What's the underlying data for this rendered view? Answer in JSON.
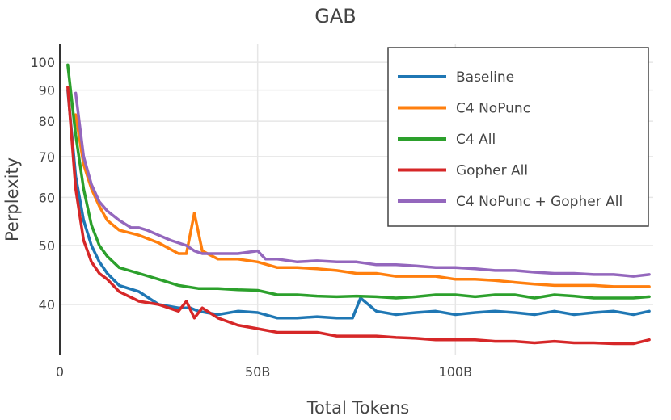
{
  "chart_data": {
    "type": "line",
    "title": "GAB",
    "xlabel": "Total Tokens",
    "ylabel": "Perplexity",
    "y_scale": "log",
    "xlim": [
      0,
      150
    ],
    "ylim": [
      33,
      107
    ],
    "x_unit_note": "x values in billions of tokens",
    "x_ticks": [
      0,
      50,
      100
    ],
    "x_tick_labels": [
      "0",
      "50B",
      "100B"
    ],
    "y_ticks": [
      40,
      50,
      60,
      70,
      80,
      90,
      100
    ],
    "y_tick_labels": [
      "40",
      "50",
      "60",
      "70",
      "80",
      "90",
      "100"
    ],
    "grid": true,
    "legend_position": "top-right",
    "series": [
      {
        "name": "Baseline",
        "color": "#1f77b4",
        "x": [
          2,
          4,
          6,
          8,
          10,
          12,
          15,
          20,
          25,
          30,
          33,
          35,
          40,
          45,
          50,
          55,
          60,
          65,
          70,
          74,
          76,
          80,
          85,
          90,
          95,
          100,
          105,
          110,
          115,
          120,
          125,
          130,
          135,
          140,
          145,
          149
        ],
        "y": [
          90,
          65,
          55,
          50,
          47,
          45,
          43,
          42,
          40,
          39.5,
          39.5,
          39,
          38.5,
          39,
          38.8,
          38,
          38,
          38.2,
          38,
          38,
          41,
          39,
          38.5,
          38.8,
          39,
          38.5,
          38.8,
          39,
          38.8,
          38.5,
          39,
          38.5,
          38.8,
          39,
          38.5,
          39
        ]
      },
      {
        "name": "C4 NoPunc",
        "color": "#ff7f0e",
        "x": [
          4,
          6,
          8,
          10,
          12,
          15,
          20,
          25,
          30,
          32,
          34,
          36,
          40,
          45,
          50,
          55,
          60,
          65,
          70,
          75,
          80,
          85,
          90,
          95,
          100,
          105,
          110,
          115,
          120,
          125,
          130,
          135,
          140,
          145,
          149
        ],
        "y": [
          82,
          68,
          62,
          58,
          55,
          53,
          52,
          50.5,
          48.5,
          48.5,
          56.5,
          49,
          47.5,
          47.5,
          47,
          46,
          46,
          45.8,
          45.5,
          45,
          45,
          44.5,
          44.5,
          44.5,
          44,
          44,
          43.8,
          43.5,
          43.2,
          43,
          43,
          43,
          42.8,
          42.8,
          42.8
        ]
      },
      {
        "name": "C4 All",
        "color": "#2ca02c",
        "x": [
          2,
          4,
          6,
          8,
          10,
          12,
          15,
          20,
          25,
          30,
          35,
          40,
          45,
          50,
          55,
          60,
          65,
          70,
          75,
          80,
          85,
          90,
          95,
          100,
          105,
          110,
          115,
          120,
          125,
          130,
          135,
          140,
          145,
          149
        ],
        "y": [
          99,
          76,
          62,
          54,
          50,
          48,
          46,
          45,
          44,
          43,
          42.5,
          42.5,
          42.3,
          42.2,
          41.5,
          41.5,
          41.3,
          41.2,
          41.3,
          41.2,
          41,
          41.2,
          41.5,
          41.5,
          41.2,
          41.5,
          41.5,
          41,
          41.5,
          41.3,
          41,
          41,
          41,
          41.2
        ]
      },
      {
        "name": "Gopher All",
        "color": "#d62728",
        "x": [
          2,
          4,
          6,
          8,
          10,
          12,
          15,
          20,
          25,
          30,
          32,
          34,
          36,
          40,
          45,
          50,
          55,
          60,
          65,
          70,
          75,
          80,
          85,
          90,
          95,
          100,
          105,
          110,
          115,
          120,
          125,
          130,
          135,
          140,
          145,
          149
        ],
        "y": [
          91,
          62,
          51,
          47,
          45,
          44,
          42,
          40.5,
          40,
          39,
          40.5,
          38,
          39.5,
          38,
          37,
          36.5,
          36,
          36,
          36,
          35.5,
          35.5,
          35.5,
          35.3,
          35.2,
          35,
          35,
          35,
          34.8,
          34.8,
          34.6,
          34.8,
          34.6,
          34.6,
          34.5,
          34.5,
          35
        ]
      },
      {
        "name": "C4 NoPunc + Gopher All",
        "color": "#9467bd",
        "x": [
          4,
          6,
          8,
          10,
          12,
          15,
          18,
          20,
          22,
          25,
          28,
          32,
          34,
          36,
          40,
          45,
          50,
          52,
          55,
          60,
          65,
          70,
          75,
          80,
          85,
          90,
          95,
          100,
          105,
          110,
          115,
          120,
          125,
          130,
          135,
          140,
          145,
          149
        ],
        "y": [
          89,
          70,
          63,
          59,
          57,
          55,
          53.5,
          53.5,
          53,
          52,
          51,
          50,
          49,
          48.5,
          48.5,
          48.5,
          49,
          47.5,
          47.5,
          47,
          47.2,
          47,
          47,
          46.5,
          46.5,
          46.3,
          46,
          46,
          45.8,
          45.5,
          45.5,
          45.2,
          45,
          45,
          44.8,
          44.8,
          44.5,
          44.8
        ]
      }
    ]
  }
}
